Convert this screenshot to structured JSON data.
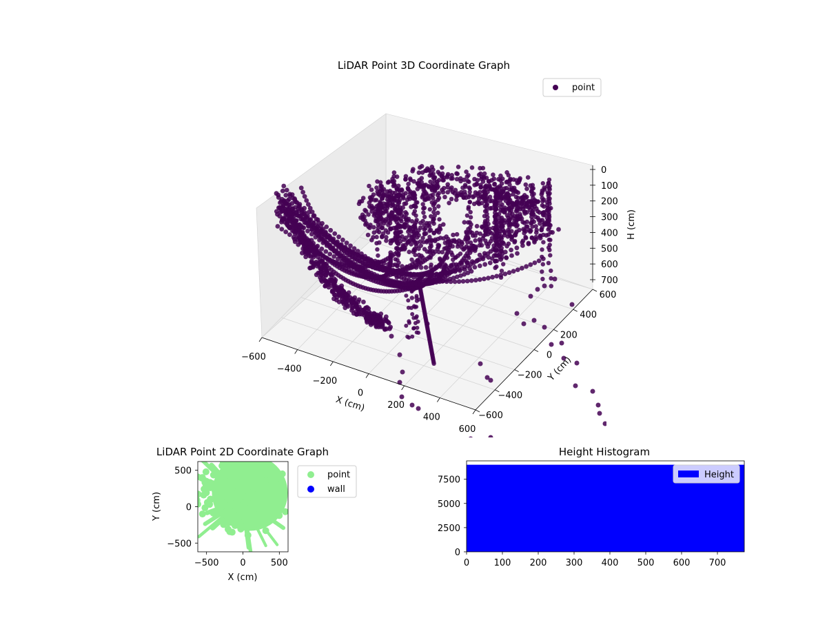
{
  "colors": {
    "point3d": "#440154",
    "point2d": "#90ee90",
    "wall": "#0000ff",
    "hist": "#0000ff",
    "pane": "#f2f2f2",
    "grid": "#d9d9d9"
  },
  "chart_data": [
    {
      "type": "scatter",
      "title": "LiDAR Point 3D Coordinate Graph",
      "xlabel": "X (cm)",
      "ylabel": "Y (cm)",
      "zlabel": "H (cm)",
      "xticks": [
        "−600",
        "−400",
        "−200",
        "0",
        "200",
        "400",
        "600"
      ],
      "yticks": [
        "−600",
        "−400",
        "−200",
        "0",
        "200",
        "400",
        "600"
      ],
      "zticks": [
        "0",
        "100",
        "200",
        "300",
        "400",
        "500",
        "600",
        "700"
      ],
      "xlim": [
        -600,
        600
      ],
      "ylim": [
        -600,
        600
      ],
      "zlim": [
        0,
        750
      ],
      "z_inverted": true,
      "legend": {
        "label": "point",
        "placement": "top-right"
      },
      "grid": true
    },
    {
      "type": "scatter",
      "title": "LiDAR Point 2D Coordinate Graph",
      "xlabel": "X (cm)",
      "ylabel": "Y (cm)",
      "xticks": [
        "−500",
        "0",
        "500"
      ],
      "yticks": [
        "−500",
        "0",
        "500"
      ],
      "xlim": [
        -620,
        620
      ],
      "ylim": [
        -620,
        620
      ],
      "legend": {
        "labels": [
          "point",
          "wall"
        ],
        "placement": "outside-right"
      },
      "grid": false
    },
    {
      "type": "bar",
      "title": "Height Histogram",
      "xticks": [
        "0",
        "100",
        "200",
        "300",
        "400",
        "500",
        "600",
        "700"
      ],
      "yticks": [
        "0",
        "2500",
        "5000",
        "7500"
      ],
      "xlim": [
        0,
        775
      ],
      "ylim": [
        0,
        9400
      ],
      "bin_count_approx": 9000,
      "legend": {
        "label": "Height",
        "placement": "top-right"
      },
      "grid": false
    }
  ]
}
